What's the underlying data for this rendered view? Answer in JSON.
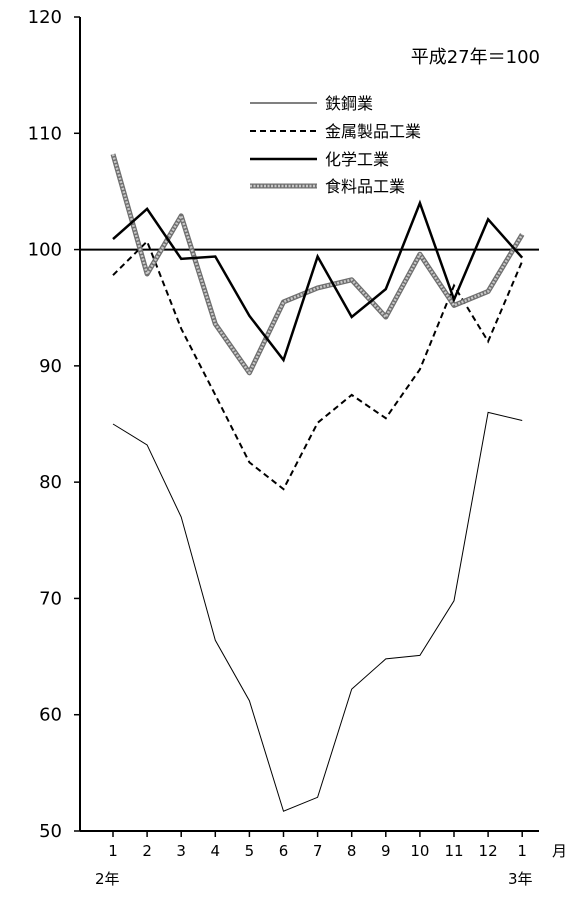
{
  "chart_data": {
    "type": "line",
    "note": "平成27年＝100",
    "categories": [
      "1",
      "2",
      "3",
      "4",
      "5",
      "6",
      "7",
      "8",
      "9",
      "10",
      "11",
      "12",
      "1"
    ],
    "unit_label": "月",
    "year_labels": {
      "start": "2年",
      "end": "3年"
    },
    "ylim": [
      50,
      120
    ],
    "yticks": [
      50,
      60,
      70,
      80,
      90,
      100,
      110,
      120
    ],
    "reference_line": 100,
    "legend_position": "top-center",
    "series": [
      {
        "name": "鉄鋼業",
        "style": "thin",
        "color": "#000000",
        "values": [
          85.0,
          83.2,
          77.0,
          66.4,
          61.2,
          51.7,
          52.9,
          62.2,
          64.8,
          65.1,
          69.8,
          86.0,
          85.3
        ]
      },
      {
        "name": "金属製品工業",
        "style": "dashed",
        "color": "#000000",
        "values": [
          97.8,
          100.7,
          93.2,
          87.5,
          81.7,
          79.4,
          85.1,
          87.5,
          85.5,
          89.7,
          96.9,
          92.1,
          99.0
        ]
      },
      {
        "name": "化学工業",
        "style": "thick",
        "color": "#000000",
        "values": [
          100.9,
          103.5,
          99.2,
          99.4,
          94.3,
          90.5,
          99.4,
          94.2,
          96.6,
          104.0,
          95.7,
          102.6,
          99.3
        ]
      },
      {
        "name": "食料品工業",
        "style": "gray",
        "color": "#999999",
        "values": [
          108.2,
          97.9,
          102.9,
          93.6,
          89.4,
          95.5,
          96.7,
          97.4,
          94.2,
          99.6,
          95.2,
          96.4,
          101.3
        ]
      }
    ]
  }
}
